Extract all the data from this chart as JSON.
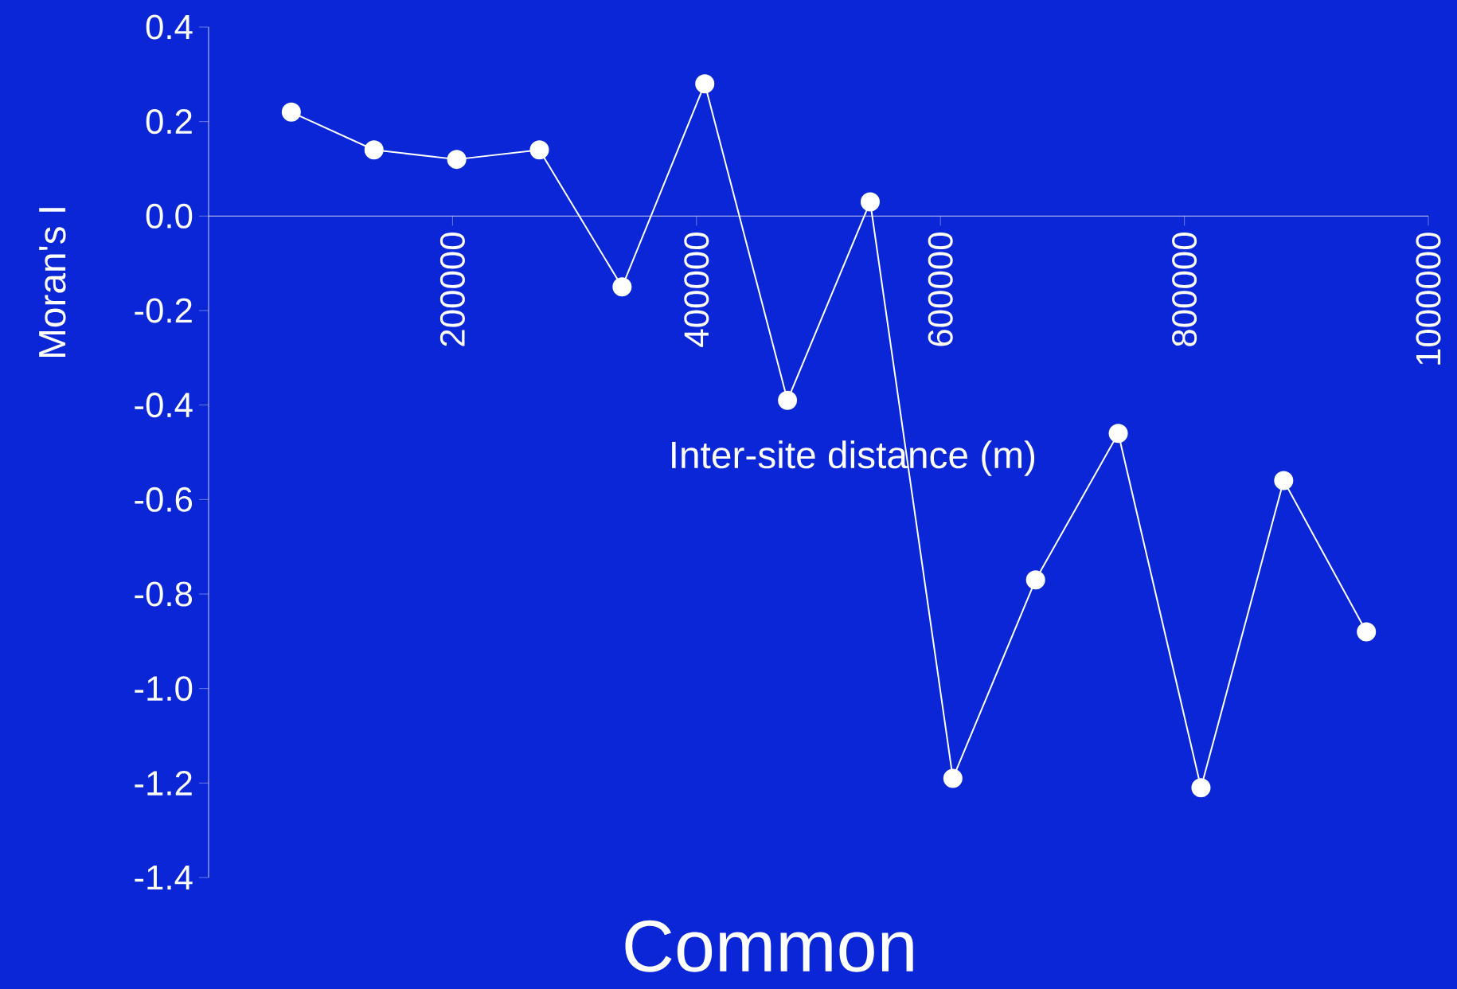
{
  "chart_data": {
    "type": "line",
    "title": "Common",
    "xlabel": "Inter-site distance (m)",
    "ylabel": "Moran's I",
    "x": [
      67800,
      135600,
      203400,
      271200,
      339000,
      406800,
      474600,
      542400,
      610200,
      678000,
      745800,
      813600,
      881400,
      949200
    ],
    "series": [
      {
        "color": "#ffffff",
        "values": [
          0.22,
          0.14,
          0.12,
          0.14,
          -0.15,
          0.28,
          -0.39,
          0.03,
          -1.19,
          -0.77,
          -0.46,
          -1.21,
          -0.56,
          -0.88
        ]
      }
    ],
    "xlim": [
      0,
      1000000
    ],
    "xticks": [
      200000,
      400000,
      600000,
      800000,
      1000000
    ],
    "ylim": [
      -1.4,
      0.4
    ],
    "yticks": [
      -1.4,
      -1.2,
      {
        "value": -1.0,
        "label": "-1.0"
      },
      -0.8,
      -0.6,
      -0.4,
      -0.2,
      {
        "value": 0,
        "label": "0.0"
      },
      0.2,
      0.4
    ],
    "grid": false,
    "marker": "circle",
    "line_style": "solid"
  }
}
